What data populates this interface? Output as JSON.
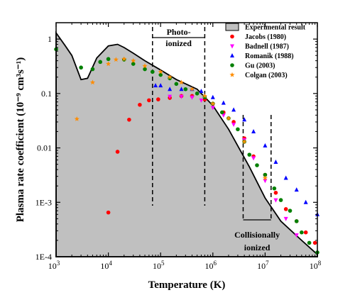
{
  "chart_data": {
    "type": "scatter",
    "xlabel": "Temperature (K)",
    "ylabel": "Plasma rate coefficient (10⁻⁹ cm³s⁻¹)",
    "xscale": "log",
    "yscale": "log",
    "xlim": [
      1000,
      100000000
    ],
    "ylim": [
      0.0001,
      2
    ],
    "xticks": [
      {
        "value": 1000,
        "mantissa": "10",
        "exp": "3"
      },
      {
        "value": 10000,
        "mantissa": "10",
        "exp": "4"
      },
      {
        "value": 100000,
        "mantissa": "10",
        "exp": "5"
      },
      {
        "value": 1000000,
        "mantissa": "10",
        "exp": "6"
      },
      {
        "value": 10000000,
        "mantissa": "10",
        "exp": "7"
      },
      {
        "value": 100000000,
        "mantissa": "10",
        "exp": "8"
      }
    ],
    "yticks": [
      {
        "value": 1,
        "label": "1"
      },
      {
        "value": 0.1,
        "label": "0.1"
      },
      {
        "value": 0.01,
        "label": "0.01"
      },
      {
        "value": 0.001,
        "label": "1E-3"
      },
      {
        "value": 0.0001,
        "label": "1E-4"
      }
    ],
    "legend_position": "top-right",
    "experimental": {
      "name": "Experimental result",
      "color": "#c0c0c0",
      "x": [
        1000,
        1500,
        2000,
        3000,
        4000,
        6000,
        10000,
        15000,
        20000,
        30000,
        50000,
        100000,
        200000,
        500000,
        1000000,
        2000000,
        5000000,
        10000000,
        20000000,
        50000000,
        100000000
      ],
      "y": [
        1.3,
        0.75,
        0.5,
        0.18,
        0.19,
        0.45,
        0.75,
        0.8,
        0.7,
        0.55,
        0.4,
        0.27,
        0.18,
        0.12,
        0.06,
        0.022,
        0.0045,
        0.0012,
        0.00045,
        0.0002,
        0.00011
      ]
    },
    "series": [
      {
        "name": "Jacobs (1980)",
        "marker": "circle",
        "color": "#ff0000",
        "x": [
          10000,
          15000,
          25000,
          40000,
          60000,
          90000,
          150000,
          250000,
          400000,
          700000,
          1000000,
          1600000,
          2500000,
          4000000,
          6000000,
          10000000,
          16000000,
          25000000,
          40000000,
          60000000,
          90000000
        ],
        "y": [
          0.00065,
          0.0085,
          0.033,
          0.062,
          0.075,
          0.078,
          0.083,
          0.09,
          0.09,
          0.078,
          0.065,
          0.045,
          0.03,
          0.015,
          0.007,
          0.0032,
          0.0015,
          0.00075,
          0.00045,
          0.00028,
          0.00018
        ]
      },
      {
        "name": "Badnell (1987)",
        "marker": "triangle-down",
        "color": "#ff00ff",
        "x": [
          150000,
          250000,
          400000,
          600000,
          1000000,
          1600000,
          2500000,
          4000000,
          6000000,
          10000000,
          16000000,
          25000000,
          40000000
        ],
        "y": [
          0.088,
          0.088,
          0.085,
          0.075,
          0.055,
          0.04,
          0.027,
          0.014,
          0.0065,
          0.0025,
          0.0011,
          0.0005,
          0.00025
        ]
      },
      {
        "name": "Romanik (1988)",
        "marker": "triangle-up",
        "color": "#0000ff",
        "x": [
          80000,
          100000,
          150000,
          250000,
          400000,
          600000,
          1000000,
          1600000,
          2500000,
          4000000,
          6000000,
          10000000,
          16000000,
          25000000,
          40000000,
          60000000,
          100000000
        ],
        "y": [
          0.14,
          0.14,
          0.12,
          0.12,
          0.12,
          0.11,
          0.085,
          0.067,
          0.05,
          0.033,
          0.02,
          0.011,
          0.0055,
          0.0028,
          0.0017,
          0.001,
          0.0006
        ]
      },
      {
        "name": "Gu (2003)",
        "marker": "circle",
        "color": "#008000",
        "x": [
          1000,
          3000,
          5000,
          7000,
          10000,
          20000,
          30000,
          50000,
          70000,
          100000,
          150000,
          200000,
          300000,
          500000,
          700000,
          1000000,
          1500000,
          2000000,
          3000000,
          4000000,
          5000000,
          7000000,
          10000000,
          15000000,
          20000000,
          30000000,
          40000000,
          50000000,
          70000000,
          100000000
        ],
        "y": [
          0.65,
          0.3,
          0.28,
          0.38,
          0.43,
          0.42,
          0.35,
          0.28,
          0.25,
          0.22,
          0.19,
          0.15,
          0.12,
          0.1,
          0.085,
          0.065,
          0.045,
          0.035,
          0.022,
          0.013,
          0.0075,
          0.0048,
          0.0032,
          0.0018,
          0.0011,
          0.0007,
          0.00045,
          0.00028,
          0.00018,
          0.00012
        ]
      },
      {
        "name": "Colgan (2003)",
        "marker": "star",
        "color": "#ff8c00",
        "x": [
          2500,
          5000,
          10000,
          14000,
          20000,
          30000,
          50000,
          100000,
          150000,
          250000,
          400000,
          700000,
          1000000,
          2000000,
          4000000,
          10000000
        ],
        "y": [
          0.034,
          0.16,
          0.35,
          0.42,
          0.43,
          0.4,
          0.32,
          0.25,
          0.2,
          0.16,
          0.12,
          0.09,
          0.065,
          0.035,
          0.013,
          0.0028
        ]
      }
    ],
    "annotations": [
      {
        "label_lines": [
          "Photo-",
          "ionized"
        ],
        "x_range": [
          70000,
          700000
        ]
      },
      {
        "label_lines": [
          "Collisionally",
          "ionized"
        ],
        "x_range": [
          3800000,
          13000000
        ]
      }
    ]
  }
}
